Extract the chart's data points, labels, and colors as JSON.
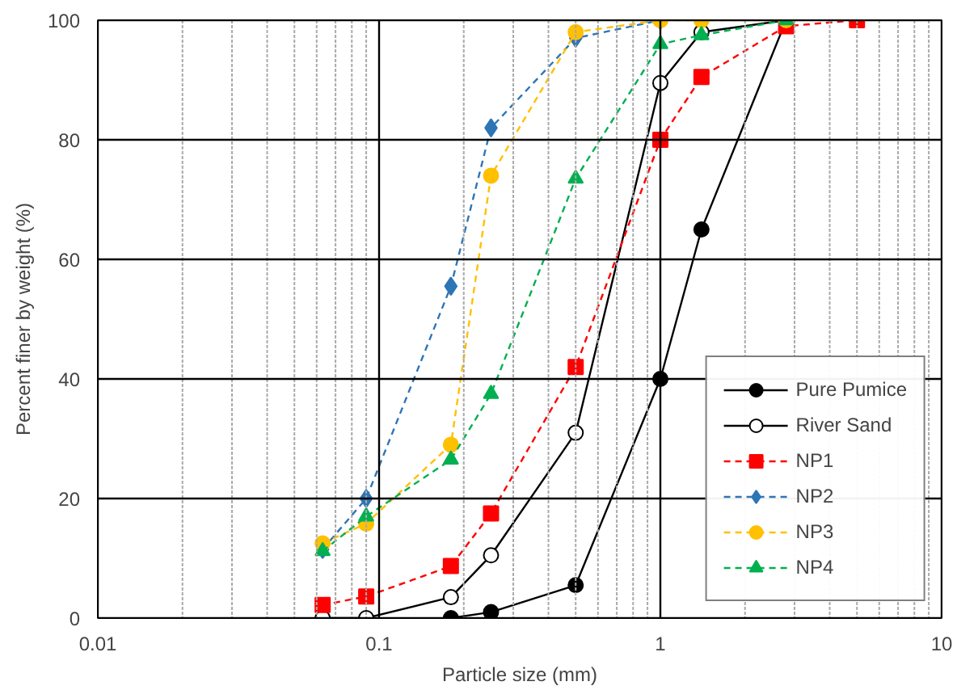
{
  "chart_data": {
    "type": "line",
    "xlabel": "Particle size (mm)",
    "ylabel": "Percent finer by weight (%)",
    "log": "x",
    "xlim": [
      0.01,
      10
    ],
    "ylim": [
      0,
      100
    ],
    "xticks": [
      0.01,
      {
        "value": 0.02,
        "label": null
      },
      {
        "value": 0.03,
        "label": null
      },
      {
        "value": 0.04,
        "label": null
      },
      {
        "value": 0.05,
        "label": null
      },
      {
        "value": 0.06,
        "label": null
      },
      {
        "value": 0.07,
        "label": null
      },
      {
        "value": 0.08,
        "label": null
      },
      {
        "value": 0.09,
        "label": null
      },
      0.1,
      {
        "value": 0.2,
        "label": null
      },
      {
        "value": 0.3,
        "label": null
      },
      {
        "value": 0.4,
        "label": null
      },
      {
        "value": 0.5,
        "label": null
      },
      {
        "value": 0.6,
        "label": null
      },
      {
        "value": 0.7,
        "label": null
      },
      {
        "value": 0.8,
        "label": null
      },
      {
        "value": 0.9,
        "label": null
      },
      1,
      {
        "value": 2,
        "label": null
      },
      {
        "value": 3,
        "label": null
      },
      {
        "value": 4,
        "label": null
      },
      {
        "value": 5,
        "label": null
      },
      {
        "value": 6,
        "label": null
      },
      {
        "value": 7,
        "label": null
      },
      {
        "value": 8,
        "label": null
      },
      {
        "value": 9,
        "label": null
      },
      10
    ],
    "yticks": [
      0,
      20,
      40,
      60,
      80,
      100
    ],
    "grid": true,
    "legend": "bottom right",
    "series": [
      {
        "name": "Pure Pumice",
        "color": "#000000",
        "marker": "circle",
        "line_style": "solid",
        "x": [
          0.18,
          0.25,
          0.5,
          1,
          1.4,
          2.8
        ],
        "values": [
          0,
          1,
          5.5,
          40,
          65,
          100
        ]
      },
      {
        "name": "River Sand",
        "color": "#000000",
        "marker": "circle",
        "line_style": "solid",
        "x": [
          0.063,
          0.09,
          0.18,
          0.25,
          0.5,
          1,
          1.4,
          2.8
        ],
        "values": [
          0,
          0,
          3.5,
          10.5,
          31,
          89.5,
          98,
          100
        ]
      },
      {
        "name": "NP1",
        "color": "#ff0000",
        "marker": "square",
        "line_style": "dashed",
        "x": [
          0.063,
          0.09,
          0.18,
          0.25,
          0.5,
          1,
          1.4,
          2.8,
          5
        ],
        "values": [
          2.2,
          3.6,
          8.7,
          17.5,
          42,
          80,
          90.5,
          99,
          100
        ]
      },
      {
        "name": "NP2",
        "color": "#2e75b6",
        "marker": "diamond",
        "line_style": "dashed",
        "x": [
          0.063,
          0.09,
          0.18,
          0.25,
          0.5,
          1
        ],
        "values": [
          11.5,
          20,
          55.5,
          82,
          97,
          100
        ]
      },
      {
        "name": "NP3",
        "color": "#ffc000",
        "marker": "circle",
        "line_style": "dashed",
        "x": [
          0.063,
          0.09,
          0.18,
          0.25,
          0.5,
          1,
          1.4,
          2.8
        ],
        "values": [
          12.5,
          15.8,
          29,
          74,
          98,
          100,
          100,
          100
        ]
      },
      {
        "name": "NP4",
        "color": "#00b050",
        "marker": "triangle",
        "line_style": "dashed",
        "x": [
          0.063,
          0.09,
          0.18,
          0.25,
          0.5,
          1,
          1.4,
          2.8
        ],
        "values": [
          11.2,
          17,
          26.5,
          37.5,
          73.5,
          96,
          97.5,
          100
        ]
      }
    ]
  }
}
